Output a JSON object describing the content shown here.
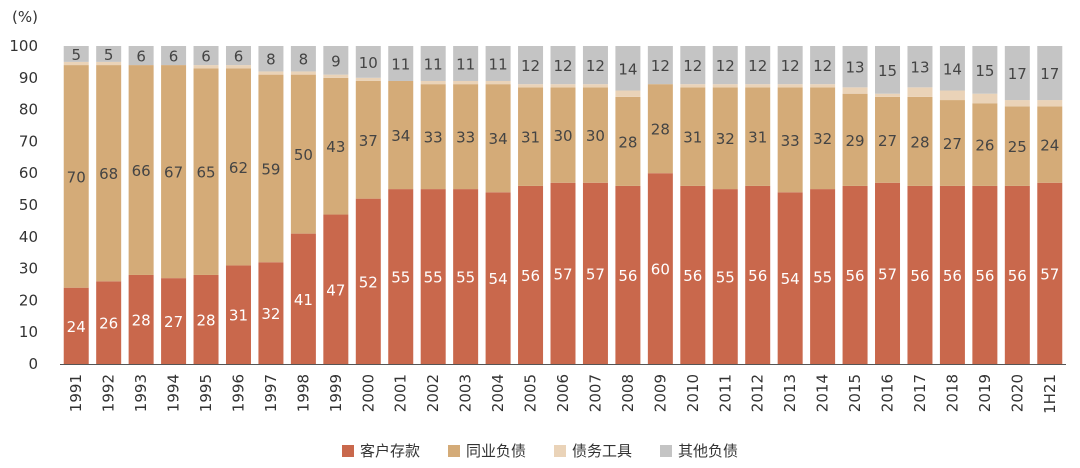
{
  "chart_data": {
    "type": "bar",
    "stacked": true,
    "y_unit_label": "(%)",
    "ylim": [
      0,
      100
    ],
    "yticks": [
      0,
      10,
      20,
      30,
      40,
      50,
      60,
      70,
      80,
      90,
      100
    ],
    "categories": [
      "1991",
      "1992",
      "1993",
      "1994",
      "1995",
      "1996",
      "1997",
      "1998",
      "1999",
      "2000",
      "2001",
      "2002",
      "2003",
      "2004",
      "2005",
      "2006",
      "2007",
      "2008",
      "2009",
      "2010",
      "2011",
      "2012",
      "2013",
      "2014",
      "2015",
      "2016",
      "2017",
      "2018",
      "2019",
      "2020",
      "1H21"
    ],
    "series": [
      {
        "name": "客户存款",
        "color": "#c9684c",
        "values": [
          24,
          26,
          28,
          27,
          28,
          31,
          32,
          41,
          47,
          52,
          55,
          55,
          55,
          54,
          56,
          57,
          57,
          56,
          60,
          56,
          55,
          56,
          54,
          55,
          56,
          57,
          56,
          56,
          56,
          56,
          57
        ],
        "labeled": true
      },
      {
        "name": "同业负债",
        "color": "#d4ab78",
        "values": [
          70,
          68,
          66,
          67,
          65,
          62,
          59,
          50,
          43,
          37,
          34,
          33,
          33,
          34,
          31,
          30,
          30,
          28,
          28,
          31,
          32,
          31,
          33,
          32,
          29,
          27,
          28,
          27,
          26,
          25,
          24
        ],
        "labeled": true
      },
      {
        "name": "债务工具",
        "color": "#ead3b8",
        "values": [
          1,
          1,
          0,
          0,
          1,
          1,
          1,
          1,
          1,
          1,
          0,
          1,
          1,
          1,
          1,
          1,
          1,
          2,
          0,
          1,
          1,
          1,
          1,
          1,
          2,
          1,
          3,
          3,
          3,
          2,
          2
        ],
        "labeled": false
      },
      {
        "name": "其他负债",
        "color": "#c4c4c4",
        "values": [
          5,
          5,
          6,
          6,
          6,
          6,
          8,
          8,
          9,
          10,
          11,
          11,
          11,
          11,
          12,
          12,
          12,
          14,
          12,
          12,
          12,
          12,
          12,
          12,
          13,
          15,
          13,
          14,
          15,
          17,
          17
        ],
        "labeled": true
      }
    ]
  }
}
